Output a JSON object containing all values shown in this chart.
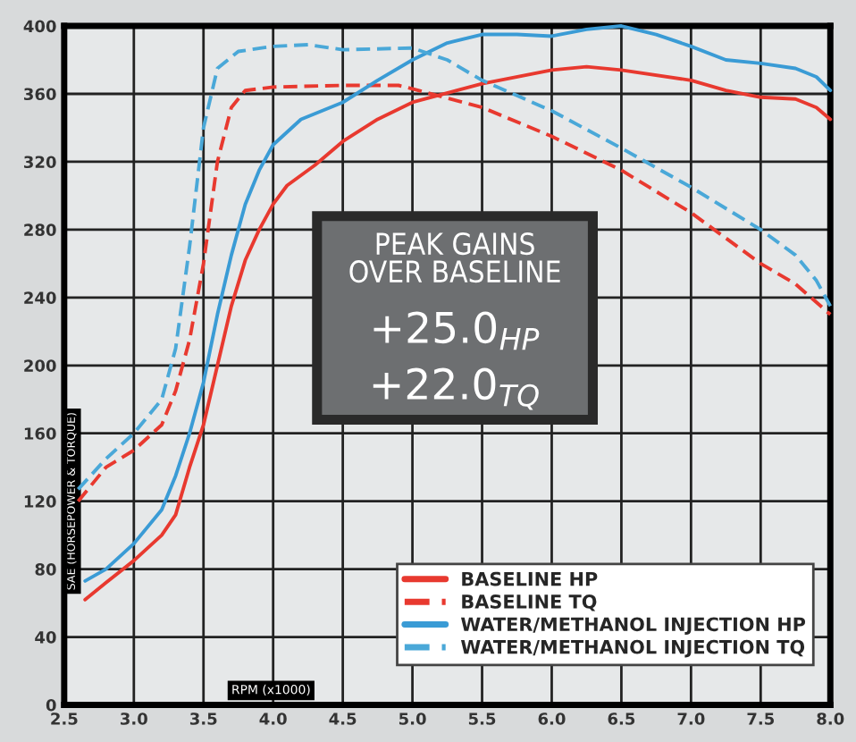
{
  "chart_data": {
    "type": "line",
    "xlabel": "RPM (x1000)",
    "ylabel": "SAE (HORSEPOWER & TORQUE)",
    "xlim": [
      2.5,
      8.0
    ],
    "xticks": [
      {
        "value": 2.5,
        "label": "2.5"
      },
      {
        "value": 3.0,
        "label": "3.0"
      },
      {
        "value": 3.5,
        "label": "3.5"
      },
      {
        "value": 4.0,
        "label": "4.0"
      },
      {
        "value": 4.5,
        "label": "4.5"
      },
      {
        "value": 5.0,
        "label": "5.0"
      },
      {
        "value": 5.5,
        "label": "5.5"
      },
      {
        "value": 6.0,
        "label": "6.0"
      },
      {
        "value": 6.5,
        "label": "6.5"
      },
      {
        "value": 7.0,
        "label": "7.0"
      },
      {
        "value": 7.5,
        "label": "7.5"
      },
      {
        "value": 8.0,
        "label": "8.0"
      }
    ],
    "ylim": [
      0,
      400
    ],
    "yticks": [
      0,
      40,
      80,
      120,
      160,
      200,
      240,
      280,
      320,
      360,
      400
    ],
    "grid": true,
    "legend": "bottom right",
    "marker": "none",
    "annotations": [
      "PEAK GAINS\nOVER BASELINE",
      "+25.0$_{HP}$",
      "+22.0$_{TQ}$"
    ],
    "series": [
      {
        "name": "BASELINE HP",
        "color": "#e8392f",
        "line_style": "solid",
        "x": [
          2.65,
          2.8,
          3.0,
          3.2,
          3.3,
          3.4,
          3.5,
          3.6,
          3.7,
          3.8,
          3.9,
          4.0,
          4.1,
          4.3,
          4.5,
          4.75,
          5.0,
          5.5,
          6.0,
          6.25,
          6.5,
          7.0,
          7.25,
          7.5,
          7.75,
          7.9,
          8.0
        ],
        "values": [
          62,
          72,
          85,
          100,
          112,
          140,
          165,
          200,
          235,
          262,
          280,
          295,
          306,
          318,
          332,
          345,
          355,
          366,
          374,
          376,
          374,
          368,
          362,
          358,
          357,
          352,
          345
        ]
      },
      {
        "name": "BASELINE TQ",
        "color": "#e8392f",
        "line_style": "dashed",
        "x": [
          2.6,
          2.8,
          3.0,
          3.2,
          3.3,
          3.4,
          3.5,
          3.6,
          3.7,
          3.8,
          4.0,
          4.5,
          4.9,
          5.0,
          5.5,
          6.0,
          6.5,
          7.0,
          7.5,
          7.75,
          8.0
        ],
        "values": [
          120,
          140,
          150,
          165,
          185,
          215,
          260,
          320,
          352,
          362,
          364,
          365,
          365,
          363,
          352,
          335,
          315,
          290,
          260,
          248,
          230
        ]
      },
      {
        "name": "WATER/METHANOL INJECTION HP",
        "color": "#3a9bd5",
        "line_style": "solid",
        "x": [
          2.65,
          2.8,
          3.0,
          3.2,
          3.3,
          3.4,
          3.5,
          3.6,
          3.7,
          3.8,
          3.9,
          4.0,
          4.2,
          4.5,
          4.75,
          5.0,
          5.25,
          5.5,
          5.75,
          6.0,
          6.25,
          6.5,
          6.75,
          7.0,
          7.25,
          7.5,
          7.75,
          7.9,
          8.0
        ],
        "values": [
          73,
          80,
          95,
          115,
          135,
          160,
          190,
          230,
          265,
          295,
          315,
          330,
          345,
          355,
          368,
          380,
          390,
          395,
          395,
          394,
          398,
          400,
          395,
          388,
          380,
          378,
          375,
          370,
          362
        ]
      },
      {
        "name": "WATER/METHANOL INJECTION TQ",
        "color": "#4aa8d8",
        "line_style": "dashed",
        "x": [
          2.6,
          2.8,
          3.0,
          3.2,
          3.3,
          3.4,
          3.5,
          3.6,
          3.75,
          4.0,
          4.25,
          4.5,
          5.0,
          5.25,
          5.5,
          6.0,
          6.5,
          7.0,
          7.5,
          7.75,
          7.9,
          8.0
        ],
        "values": [
          127,
          145,
          160,
          180,
          210,
          270,
          340,
          375,
          385,
          388,
          389,
          386,
          387,
          380,
          368,
          350,
          328,
          305,
          280,
          265,
          250,
          235
        ]
      }
    ]
  }
}
